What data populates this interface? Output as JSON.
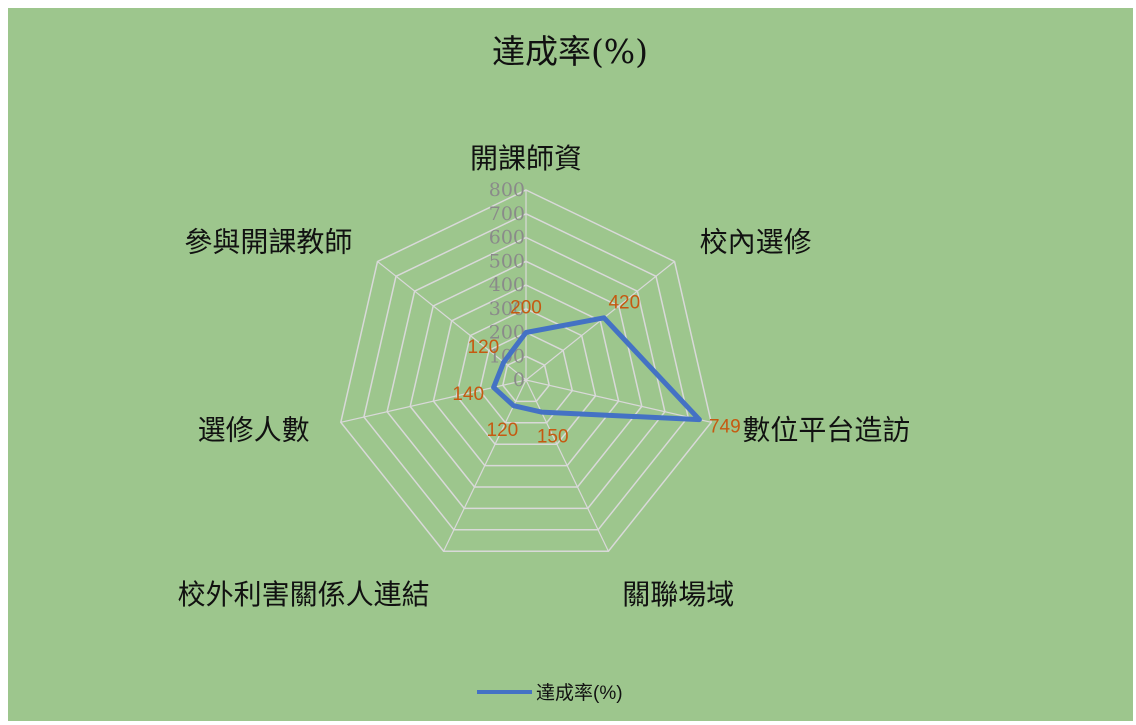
{
  "colors": {
    "background": "#9dc68d",
    "grid": "#d9d9d9",
    "series": "#4472c4",
    "data_label": "#c55a11",
    "tick_label": "#8a8a8a",
    "text": "#111111"
  },
  "chart_data": {
    "type": "radar",
    "title": "達成率(%)",
    "categories": [
      "開課師資",
      "校內選修",
      "數位平台造訪",
      "關聯場域",
      "校外利害關係人連結",
      "選修人數",
      "參與開課教師"
    ],
    "series": [
      {
        "name": "達成率(%)",
        "values": [
          200,
          420,
          749,
          150,
          120,
          140,
          120
        ],
        "data_labels": [
          "200",
          "420",
          "749",
          "150",
          "120",
          "140",
          "120"
        ]
      }
    ],
    "axis": {
      "min": 0,
      "max": 800,
      "step": 100,
      "tick_labels": [
        "0",
        "100",
        "200",
        "300",
        "400",
        "500",
        "600",
        "700",
        "800"
      ]
    },
    "grid": true,
    "legend_position": "bottom"
  }
}
